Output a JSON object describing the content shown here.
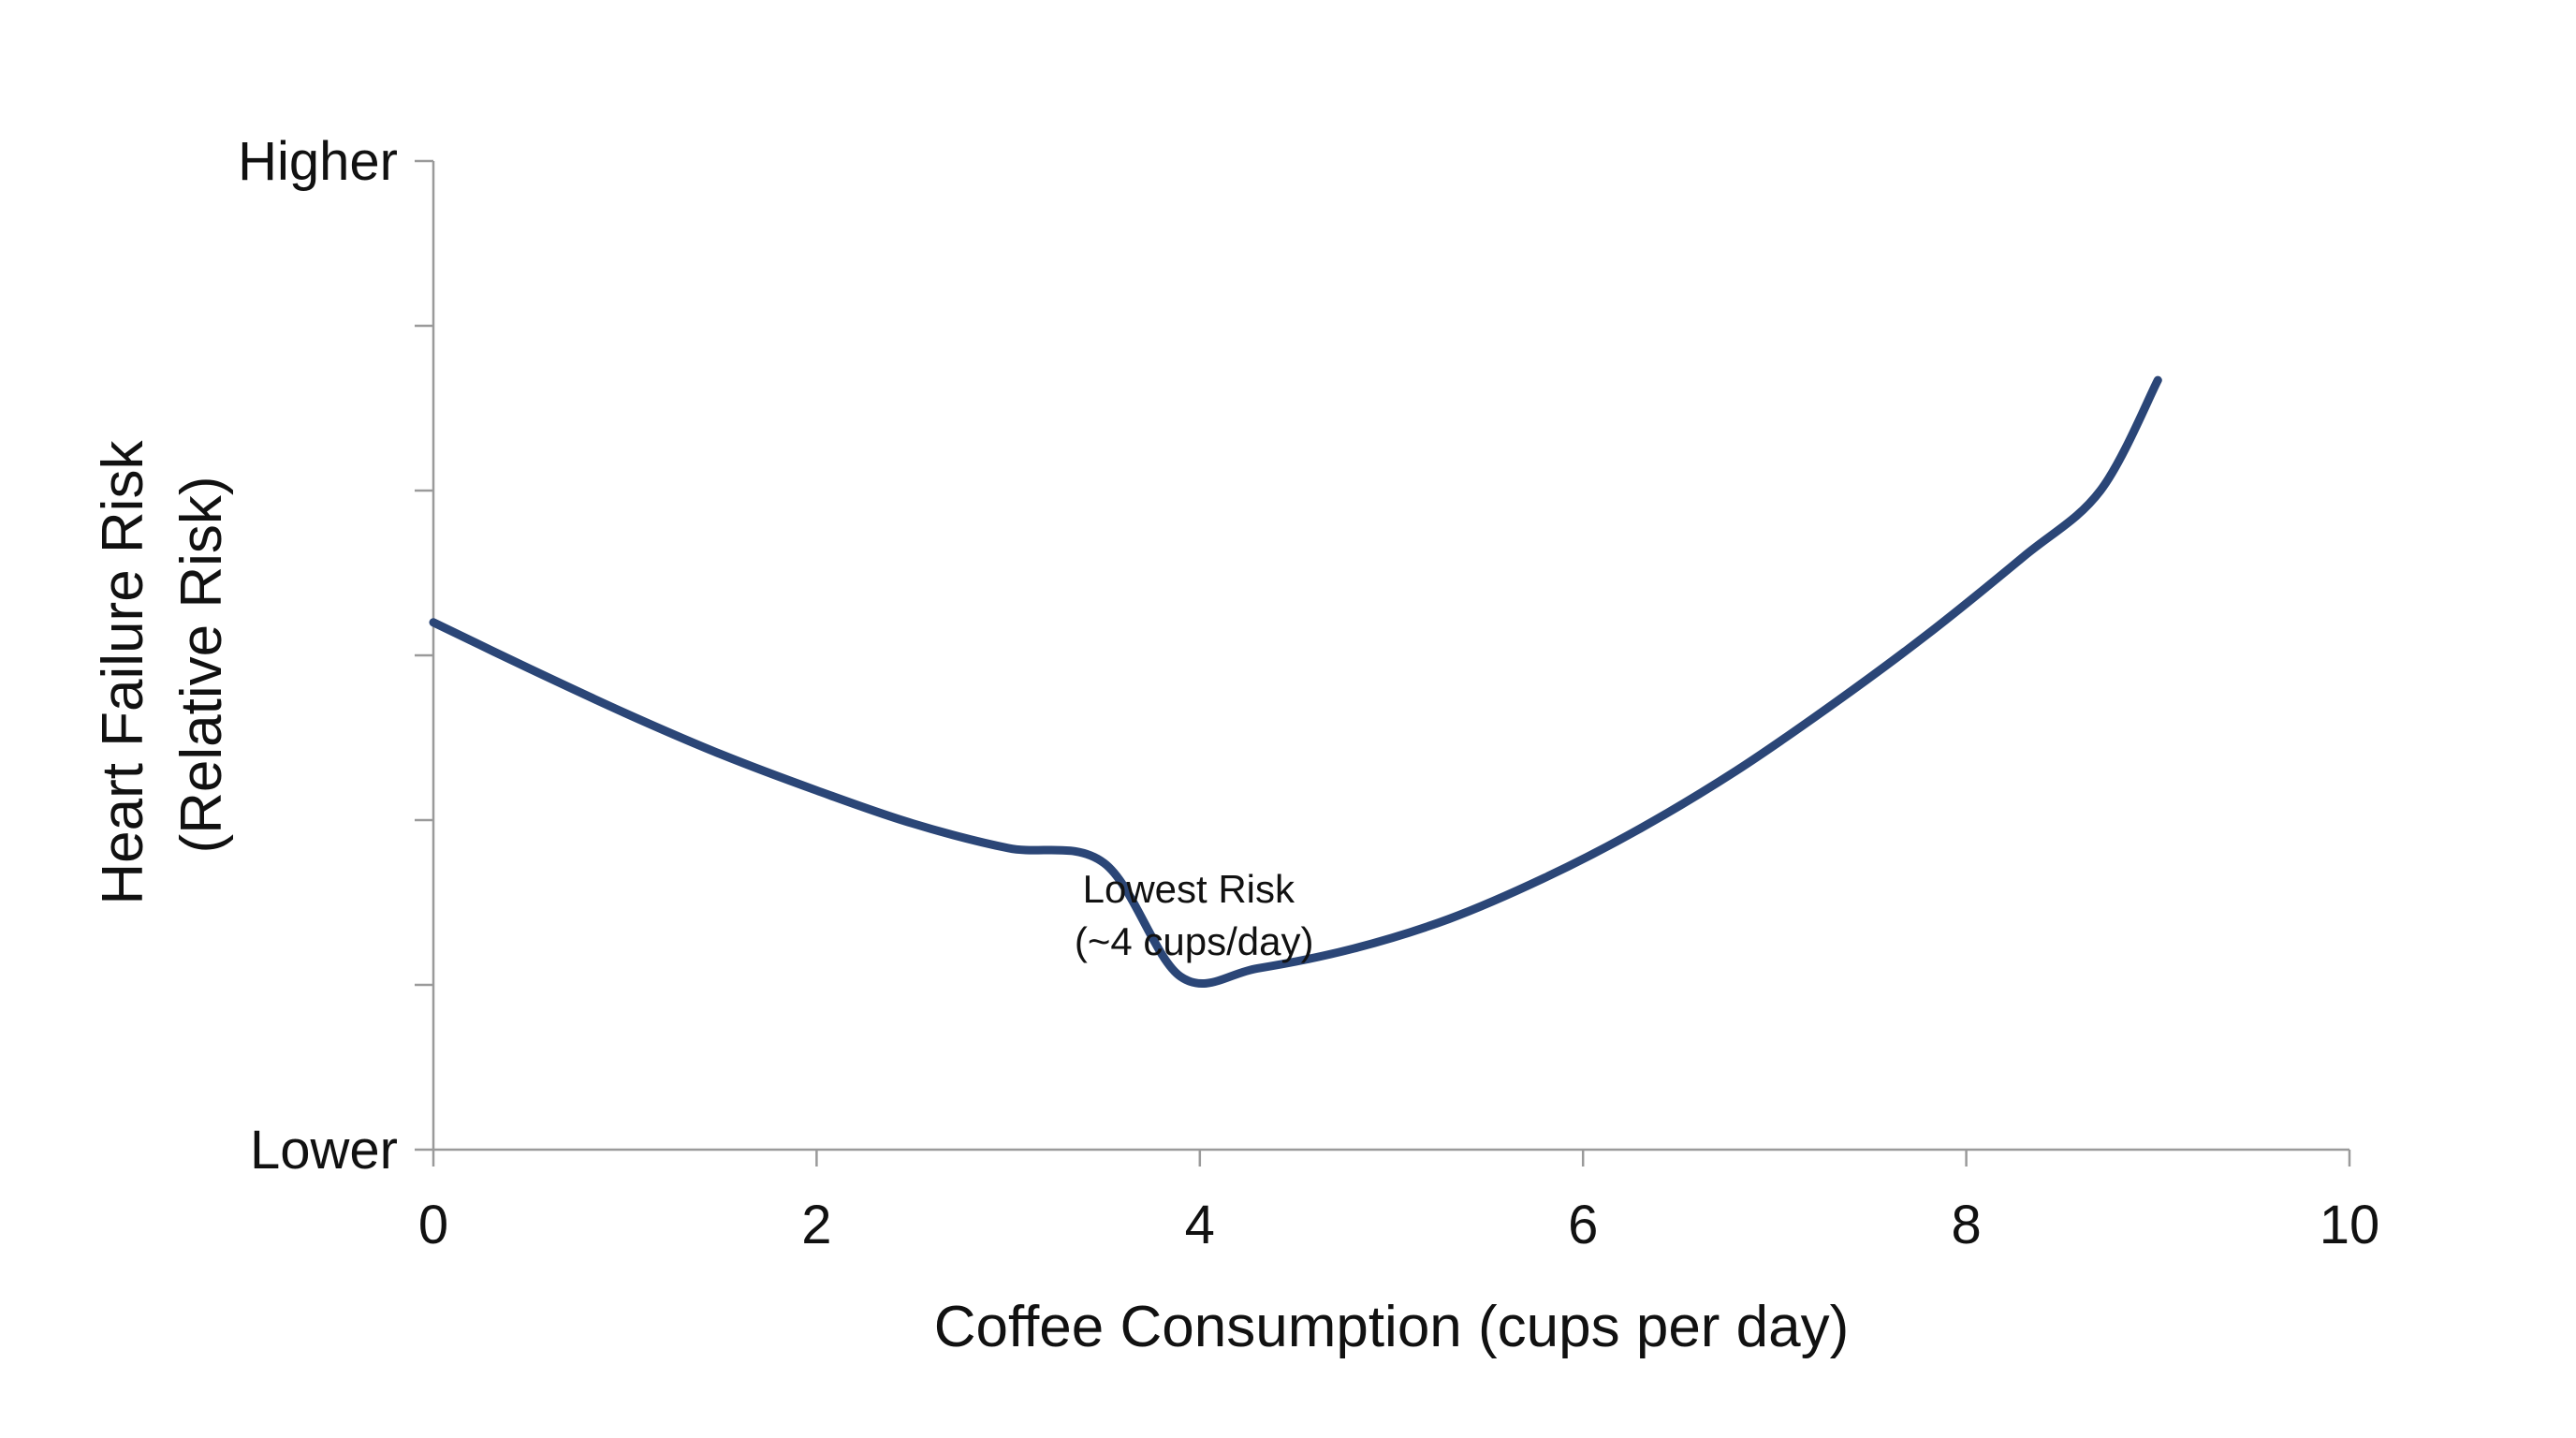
{
  "chart_data": {
    "type": "line",
    "xlabel": "Coffee Consumption (cups per day)",
    "ylabel_lines": [
      "Heart Failure Risk",
      "(Relative Risk)"
    ],
    "xlim": [
      0,
      10
    ],
    "x_ticks": [
      "0",
      "2",
      "4",
      "6",
      "8",
      "10"
    ],
    "y_tick_labels": {
      "top": "Higher",
      "bottom": "Lower"
    },
    "ylim": [
      0,
      6
    ],
    "grid": false,
    "series": [
      {
        "color": "#2b4677",
        "points": [
          [
            0,
            3.2
          ],
          [
            0.5,
            2.92
          ],
          [
            1,
            2.65
          ],
          [
            1.5,
            2.4
          ],
          [
            2,
            2.18
          ],
          [
            2.5,
            1.98
          ],
          [
            3,
            1.83
          ],
          [
            3.5,
            1.74
          ],
          [
            3.9,
            1.05
          ],
          [
            4.3,
            1.1
          ],
          [
            4.8,
            1.22
          ],
          [
            5.3,
            1.4
          ],
          [
            5.8,
            1.65
          ],
          [
            6.3,
            1.95
          ],
          [
            6.8,
            2.3
          ],
          [
            7.3,
            2.7
          ],
          [
            7.8,
            3.13
          ],
          [
            8.3,
            3.6
          ],
          [
            8.7,
            4.0
          ],
          [
            9,
            4.67
          ]
        ]
      }
    ],
    "annotations": [
      {
        "lines": [
          "Lowest Risk",
          "(~4 cups/day)"
        ],
        "x": 3.97,
        "y": 1.5
      }
    ]
  }
}
